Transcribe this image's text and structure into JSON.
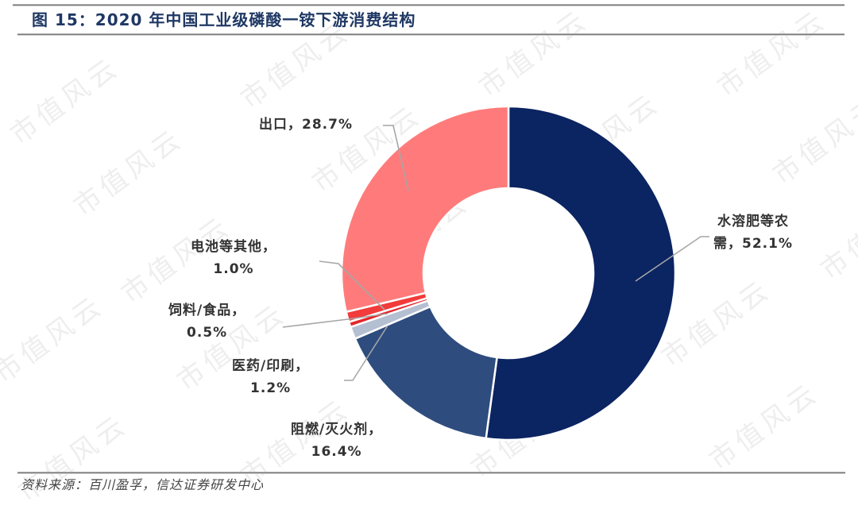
{
  "header": {
    "title": "图 15：2020 年中国工业级磷酸一铵下游消费结构"
  },
  "footer": {
    "source": "资料来源：百川盈孚，信达证券研发中心"
  },
  "watermark": {
    "text": "市值风云"
  },
  "labels": {
    "export": {
      "line1": "出口，28.7%"
    },
    "agri": {
      "line1": "水溶肥等农",
      "line2": "需，52.1%"
    },
    "battery": {
      "line1": "电池等其他，",
      "line2": "1.0%"
    },
    "feed": {
      "line1": "饲料/食品，",
      "line2": "0.5%"
    },
    "pharma": {
      "line1": "医药/印刷，",
      "line2": "1.2%"
    },
    "flame": {
      "line1": "阻燃/灭火剂，",
      "line2": "16.4%"
    }
  },
  "chart_data": {
    "type": "pie",
    "subtype": "donut",
    "title": "2020 年中国工业级磷酸一铵下游消费结构",
    "figure_number": "图 15",
    "unit": "%",
    "start_angle": "12 o'clock, clockwise",
    "categories": [
      "水溶肥等农需",
      "阻燃/灭火剂",
      "医药/印刷",
      "饲料/食品",
      "电池等其他",
      "出口"
    ],
    "values": [
      52.1,
      16.4,
      1.2,
      0.5,
      1.0,
      28.7
    ],
    "colors": [
      "#0b2462",
      "#2e4c7e",
      "#b5bfd2",
      "#e3262b",
      "#f23b3b",
      "#ff7b7b"
    ],
    "legend": "none (data labels with leader lines)",
    "source": "百川盈孚，信达证券研发中心"
  }
}
